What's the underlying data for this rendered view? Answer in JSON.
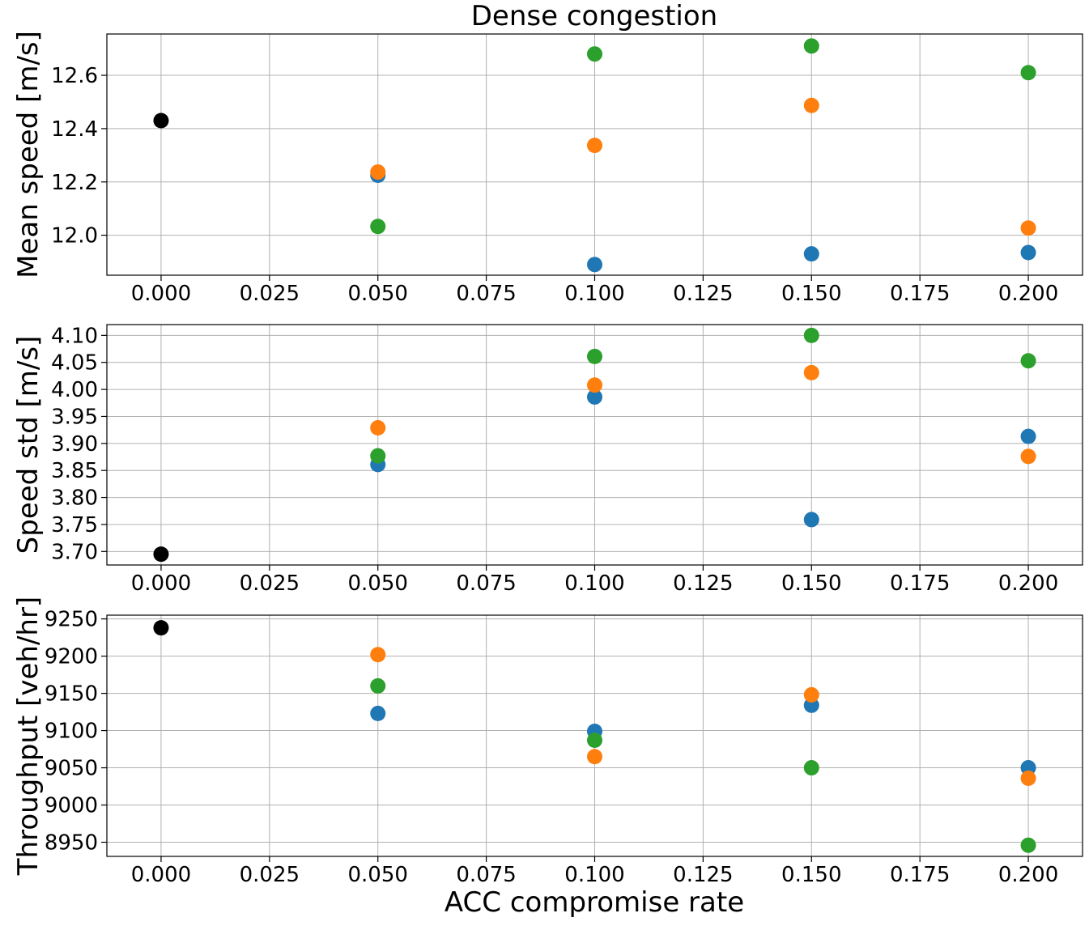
{
  "chart_data": {
    "type": "scatter",
    "title": "Dense congestion",
    "xlabel": "ACC compromise rate",
    "colors": {
      "baseline": "#000000",
      "series_1": "#1f77b4",
      "series_2": "#ff7f0e",
      "series_3": "#2ca02c"
    },
    "x_ticks": [
      "0.000",
      "0.025",
      "0.050",
      "0.075",
      "0.100",
      "0.125",
      "0.150",
      "0.175",
      "0.200"
    ],
    "x_tick_values": [
      0,
      0.025,
      0.05,
      0.075,
      0.1,
      0.125,
      0.15,
      0.175,
      0.2
    ],
    "xlim": [
      -0.0125,
      0.2125
    ],
    "panels": [
      {
        "ylabel": "Mean speed [m/s]",
        "ylim": [
          11.85,
          12.755
        ],
        "y_ticks": [
          "12.0",
          "12.2",
          "12.4",
          "12.6"
        ],
        "y_tick_values": [
          12.0,
          12.2,
          12.4,
          12.6
        ],
        "baseline": {
          "x": 0.0,
          "y": 12.43
        },
        "series": [
          {
            "name": "series_1",
            "x": [
              0.05,
              0.1,
              0.15,
              0.2
            ],
            "y": [
              12.225,
              11.89,
              11.93,
              11.935
            ]
          },
          {
            "name": "series_2",
            "x": [
              0.05,
              0.1,
              0.15,
              0.2
            ],
            "y": [
              12.237,
              12.337,
              12.487,
              12.027
            ]
          },
          {
            "name": "series_3",
            "x": [
              0.05,
              0.1,
              0.15,
              0.2
            ],
            "y": [
              12.033,
              12.68,
              12.71,
              12.61
            ]
          }
        ]
      },
      {
        "ylabel": "Speed std [m/s]",
        "ylim": [
          3.675,
          4.12
        ],
        "y_ticks": [
          "3.70",
          "3.75",
          "3.80",
          "3.85",
          "3.90",
          "3.95",
          "4.00",
          "4.05",
          "4.10"
        ],
        "y_tick_values": [
          3.7,
          3.75,
          3.8,
          3.85,
          3.9,
          3.95,
          4.0,
          4.05,
          4.1
        ],
        "baseline": {
          "x": 0.0,
          "y": 3.695
        },
        "series": [
          {
            "name": "series_1",
            "x": [
              0.05,
              0.1,
              0.15,
              0.2
            ],
            "y": [
              3.861,
              3.986,
              3.759,
              3.913
            ]
          },
          {
            "name": "series_2",
            "x": [
              0.05,
              0.1,
              0.15,
              0.2
            ],
            "y": [
              3.929,
              4.008,
              4.031,
              3.876
            ]
          },
          {
            "name": "series_3",
            "x": [
              0.05,
              0.1,
              0.15,
              0.2
            ],
            "y": [
              3.877,
              4.061,
              4.1,
              4.053
            ]
          }
        ]
      },
      {
        "ylabel": "Throughput [veh/hr]",
        "ylim": [
          8931,
          9255
        ],
        "y_ticks": [
          "8950",
          "9000",
          "9050",
          "9100",
          "9150",
          "9200",
          "9250"
        ],
        "y_tick_values": [
          8950,
          9000,
          9050,
          9100,
          9150,
          9200,
          9250
        ],
        "baseline": {
          "x": 0.0,
          "y": 9238
        },
        "series": [
          {
            "name": "series_1",
            "x": [
              0.05,
              0.1,
              0.15,
              0.2
            ],
            "y": [
              9123,
              9099,
              9134,
              9050
            ]
          },
          {
            "name": "series_2",
            "x": [
              0.05,
              0.1,
              0.15,
              0.2
            ],
            "y": [
              9202,
              9065,
              9148,
              9036
            ]
          },
          {
            "name": "series_3",
            "x": [
              0.05,
              0.1,
              0.15,
              0.2
            ],
            "y": [
              9160,
              9087,
              9050,
              8946
            ]
          }
        ]
      }
    ]
  }
}
